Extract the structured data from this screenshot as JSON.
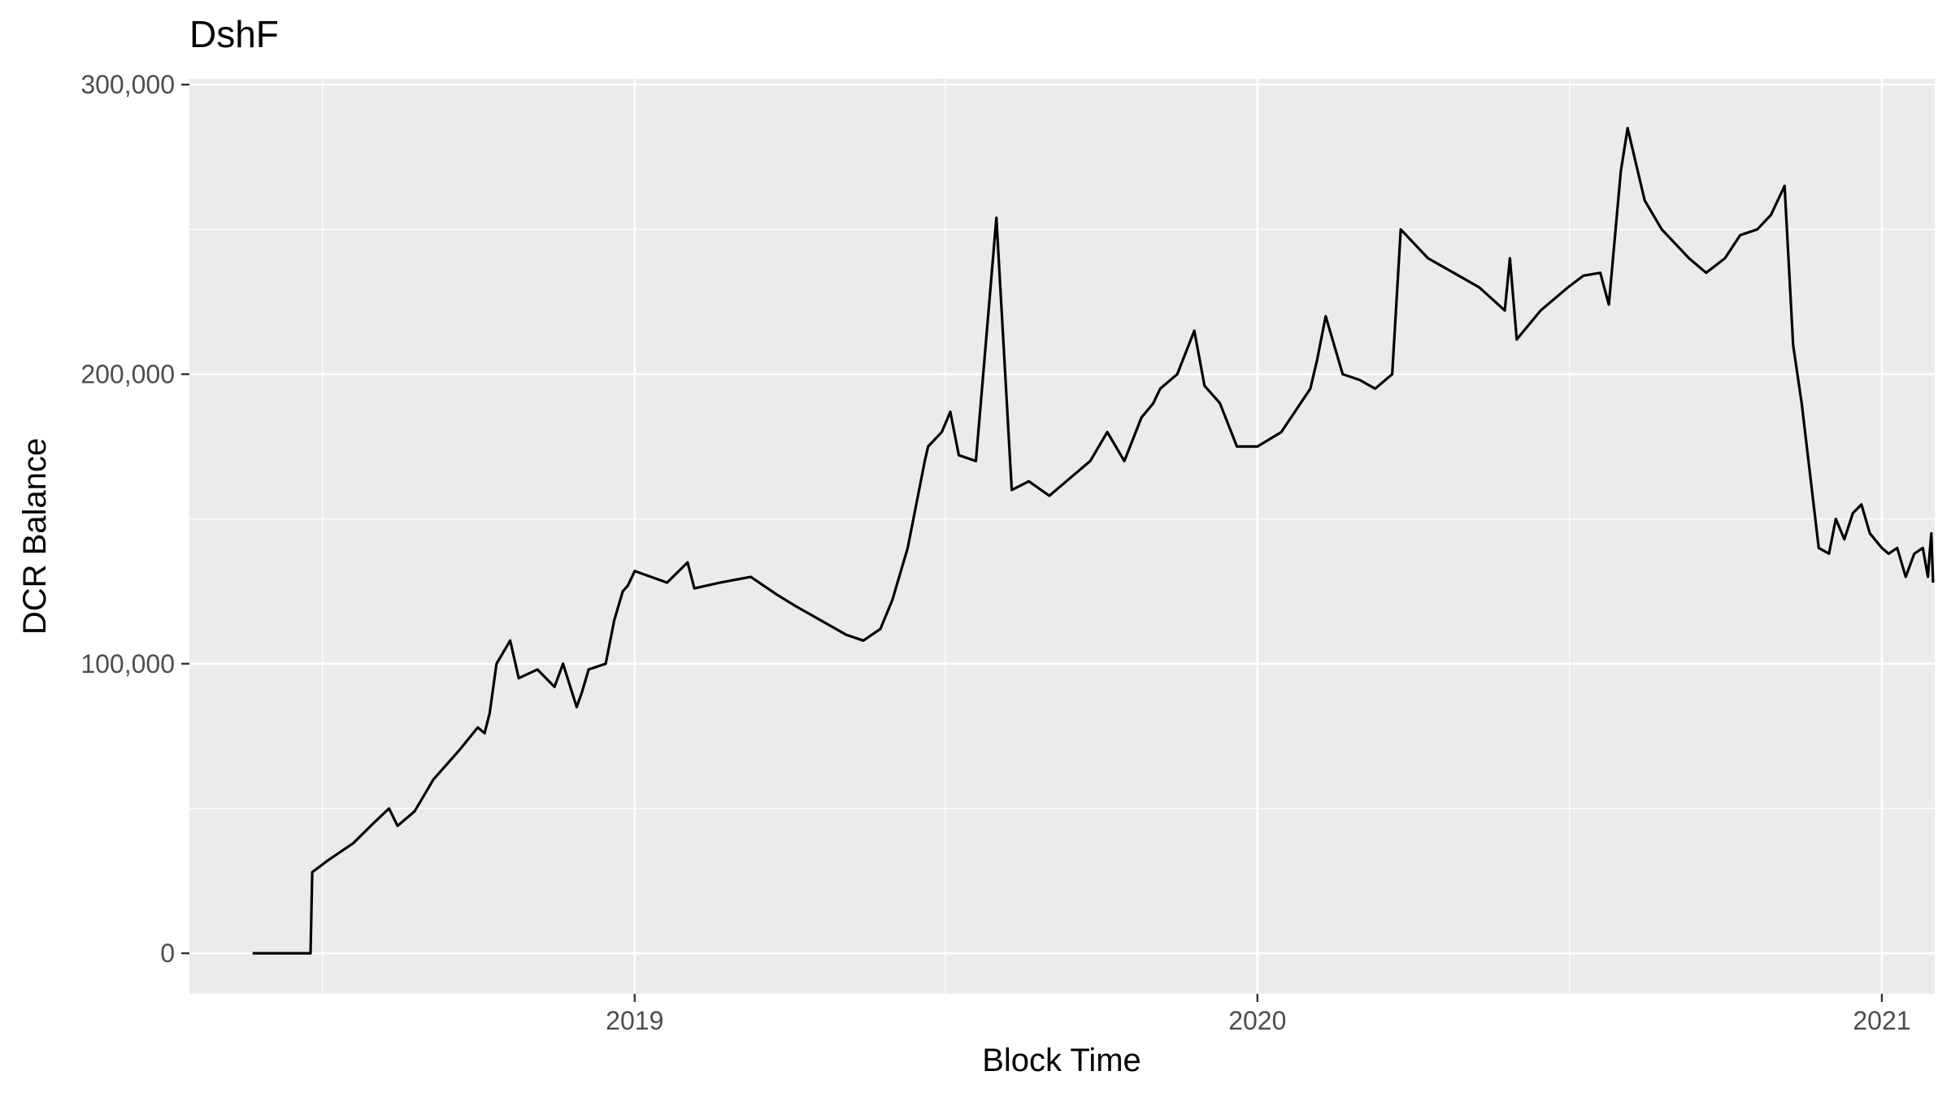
{
  "chart_data": {
    "type": "line",
    "title": "DshF",
    "xlabel": "Block Time",
    "ylabel": "DCR Balance",
    "xlim": [
      "2018-04-15",
      "2021-02-01"
    ],
    "ylim": [
      -14000,
      302000
    ],
    "x_ticks": [
      {
        "date": "2019-01-01",
        "label": "2019"
      },
      {
        "date": "2020-01-01",
        "label": "2020"
      },
      {
        "date": "2021-01-01",
        "label": "2021"
      }
    ],
    "x_minor": [
      "2018-07-02",
      "2019-07-02",
      "2020-07-02"
    ],
    "y_ticks": [
      {
        "value": 0,
        "label": "0"
      },
      {
        "value": 100000,
        "label": "100,000"
      },
      {
        "value": 200000,
        "label": "200,000"
      },
      {
        "value": 300000,
        "label": "300,000"
      }
    ],
    "y_minor": [
      50000,
      150000,
      250000
    ],
    "grid": true,
    "panel_background": "#ebebeb",
    "line_color": "#000000",
    "series": [
      {
        "x": [
          "2018-05-22",
          "2018-06-10",
          "2018-06-25",
          "2018-06-26",
          "2018-07-05",
          "2018-07-20",
          "2018-08-01",
          "2018-08-10",
          "2018-08-15",
          "2018-08-25",
          "2018-09-05",
          "2018-09-20",
          "2018-10-01",
          "2018-10-05",
          "2018-10-08",
          "2018-10-12",
          "2018-10-20",
          "2018-10-25",
          "2018-11-05",
          "2018-11-15",
          "2018-11-20",
          "2018-11-28",
          "2018-12-01",
          "2018-12-05",
          "2018-12-15",
          "2018-12-20",
          "2018-12-25",
          "2018-12-28",
          "2019-01-01",
          "2019-01-20",
          "2019-02-01",
          "2019-02-05",
          "2019-02-20",
          "2019-03-10",
          "2019-03-25",
          "2019-04-05",
          "2019-04-20",
          "2019-05-05",
          "2019-05-15",
          "2019-05-25",
          "2019-06-01",
          "2019-06-10",
          "2019-06-20",
          "2019-06-22",
          "2019-06-30",
          "2019-07-05",
          "2019-07-10",
          "2019-07-20",
          "2019-08-01",
          "2019-08-10",
          "2019-08-20",
          "2019-09-01",
          "2019-09-15",
          "2019-09-25",
          "2019-10-05",
          "2019-10-15",
          "2019-10-25",
          "2019-11-01",
          "2019-11-05",
          "2019-11-15",
          "2019-11-25",
          "2019-12-01",
          "2019-12-10",
          "2019-12-20",
          "2020-01-01",
          "2020-01-15",
          "2020-02-01",
          "2020-02-05",
          "2020-02-10",
          "2020-02-20",
          "2020-03-01",
          "2020-03-10",
          "2020-03-20",
          "2020-03-25",
          "2020-04-10",
          "2020-04-25",
          "2020-05-10",
          "2020-05-25",
          "2020-05-28",
          "2020-06-01",
          "2020-06-15",
          "2020-07-01",
          "2020-07-10",
          "2020-07-20",
          "2020-07-25",
          "2020-08-01",
          "2020-08-05",
          "2020-08-15",
          "2020-08-25",
          "2020-09-10",
          "2020-09-20",
          "2020-10-01",
          "2020-10-10",
          "2020-10-20",
          "2020-10-28",
          "2020-11-05",
          "2020-11-10",
          "2020-11-15",
          "2020-11-20",
          "2020-11-25",
          "2020-12-01",
          "2020-12-05",
          "2020-12-10",
          "2020-12-15",
          "2020-12-20",
          "2020-12-25",
          "2021-01-01",
          "2021-01-05",
          "2021-01-10",
          "2021-01-15",
          "2021-01-20",
          "2021-01-25",
          "2021-01-28",
          "2021-01-29",
          "2021-01-30",
          "2021-01-31"
        ],
        "y": [
          0,
          0,
          0,
          28000,
          32000,
          38000,
          45000,
          50000,
          44000,
          49000,
          60000,
          70000,
          78000,
          76000,
          83000,
          100000,
          108000,
          95000,
          98000,
          92000,
          100000,
          85000,
          90000,
          98000,
          100000,
          115000,
          125000,
          127000,
          132000,
          128000,
          135000,
          126000,
          128000,
          130000,
          124000,
          120000,
          115000,
          110000,
          108000,
          112000,
          122000,
          140000,
          170000,
          175000,
          180000,
          187000,
          172000,
          170000,
          254000,
          160000,
          163000,
          158000,
          165000,
          170000,
          180000,
          170000,
          185000,
          190000,
          195000,
          200000,
          215000,
          196000,
          190000,
          175000,
          175000,
          180000,
          195000,
          205000,
          220000,
          200000,
          198000,
          195000,
          200000,
          250000,
          240000,
          235000,
          230000,
          222000,
          240000,
          212000,
          222000,
          230000,
          234000,
          235000,
          224000,
          270000,
          285000,
          260000,
          250000,
          240000,
          235000,
          240000,
          248000,
          250000,
          255000,
          265000,
          210000,
          190000,
          165000,
          140000,
          138000,
          150000,
          143000,
          152000,
          155000,
          145000,
          140000,
          138000,
          140000,
          130000,
          138000,
          140000,
          130000,
          138000,
          145000,
          128000
        ]
      }
    ]
  }
}
